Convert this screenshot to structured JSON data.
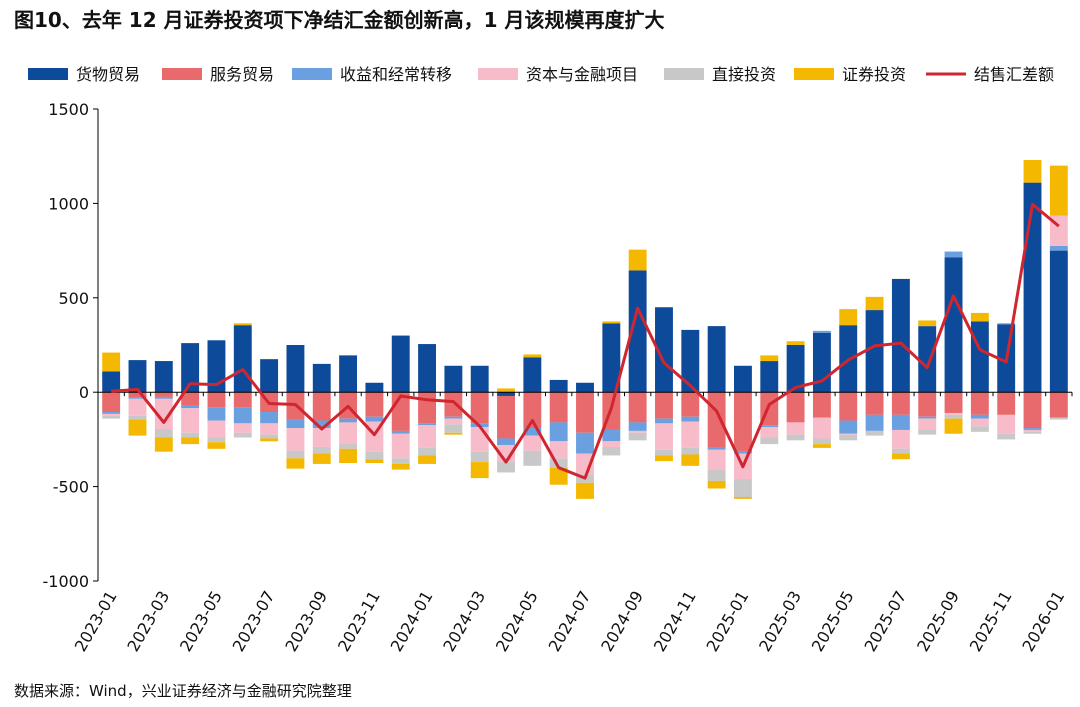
{
  "title": "图10、去年 12 月证券投资项下净结汇金额创新高，1 月该规模再度扩大",
  "source": "数据来源：Wind，兴业证券经济与金融研究院整理",
  "chart_data": {
    "type": "bar",
    "stacked": true,
    "x": [
      "2023-01",
      "2023-02",
      "2023-03",
      "2023-04",
      "2023-05",
      "2023-06",
      "2023-07",
      "2023-08",
      "2023-09",
      "2023-10",
      "2023-11",
      "2023-12",
      "2024-01",
      "2024-02",
      "2024-03",
      "2024-04",
      "2024-05",
      "2024-06",
      "2024-07",
      "2024-08",
      "2024-09",
      "2024-10",
      "2024-11",
      "2024-12",
      "2025-01",
      "2025-02",
      "2025-03",
      "2025-04",
      "2025-05",
      "2025-06",
      "2025-07",
      "2025-08",
      "2025-09",
      "2025-10",
      "2025-11",
      "2025-12",
      "2026-01"
    ],
    "x_tick_labels": [
      "2023-01",
      "2023-03",
      "2023-05",
      "2023-07",
      "2023-09",
      "2023-11",
      "2024-01",
      "2024-03",
      "2024-05",
      "2024-07",
      "2024-09",
      "2024-11",
      "2025-01",
      "2025-03",
      "2025-05",
      "2025-07",
      "2025-09",
      "2025-11",
      "2026-01"
    ],
    "ylim": [
      -1000,
      1500
    ],
    "y_ticks": [
      -1000,
      -500,
      0,
      500,
      1000,
      1500
    ],
    "legend_position": "top",
    "grid": false,
    "series": [
      {
        "name": "货物贸易",
        "color": "#0D4B9A",
        "values": [
          110,
          170,
          165,
          260,
          275,
          355,
          175,
          250,
          150,
          195,
          50,
          300,
          255,
          140,
          140,
          -20,
          185,
          65,
          50,
          365,
          645,
          450,
          330,
          350,
          140,
          165,
          250,
          315,
          355,
          435,
          600,
          350,
          715,
          375,
          360,
          1110,
          750
        ]
      },
      {
        "name": "服务贸易",
        "color": "#E96A6C",
        "values": [
          -105,
          -30,
          -25,
          -70,
          -80,
          -80,
          -105,
          -145,
          -150,
          -140,
          -130,
          -205,
          -165,
          -130,
          -165,
          -225,
          -190,
          -160,
          -215,
          -200,
          -160,
          -140,
          -130,
          -295,
          -315,
          -175,
          -160,
          -135,
          -150,
          -120,
          -120,
          -130,
          -110,
          -120,
          -120,
          -190,
          -135
        ]
      },
      {
        "name": "收益和经常转移",
        "color": "#6A9FE0",
        "values": [
          -10,
          -5,
          -10,
          -15,
          -70,
          -85,
          -60,
          -45,
          -40,
          -20,
          -25,
          -15,
          -10,
          -10,
          -20,
          -35,
          -40,
          -100,
          -110,
          -60,
          -45,
          -25,
          -25,
          -10,
          -10,
          -10,
          0,
          10,
          -70,
          -85,
          -80,
          -10,
          30,
          -20,
          5,
          -10,
          25
        ]
      },
      {
        "name": "资本与金融项目",
        "color": "#F8BBC9",
        "values": [
          -10,
          -90,
          -160,
          -130,
          -90,
          -50,
          -60,
          -120,
          -100,
          -110,
          -160,
          -130,
          -120,
          -30,
          -130,
          -90,
          -80,
          -90,
          -110,
          -30,
          -10,
          -140,
          -140,
          -105,
          -135,
          -55,
          -65,
          -110,
          -5,
          0,
          -100,
          -60,
          -10,
          -40,
          -100,
          -10,
          160
        ]
      },
      {
        "name": "直接投资",
        "color": "#C8C8C8",
        "values": [
          -15,
          -20,
          -45,
          -25,
          -25,
          -25,
          -20,
          -40,
          -35,
          -30,
          -40,
          -30,
          -40,
          -45,
          -55,
          -55,
          -80,
          -50,
          -45,
          -45,
          -40,
          -30,
          -35,
          -60,
          -95,
          -35,
          -30,
          -30,
          -30,
          -25,
          -25,
          -25,
          -20,
          -30,
          -30,
          -10,
          -10
        ]
      },
      {
        "name": "证券投资",
        "color": "#F5B800",
        "values": [
          100,
          -85,
          -75,
          -35,
          -35,
          10,
          -15,
          -55,
          -55,
          -75,
          -20,
          -30,
          -45,
          -10,
          -85,
          20,
          15,
          -90,
          -85,
          10,
          110,
          -30,
          -60,
          -40,
          -10,
          30,
          20,
          -20,
          85,
          70,
          -30,
          30,
          -80,
          45,
          0,
          120,
          265
        ]
      },
      {
        "name": "结售汇差额",
        "color": "#D0262F",
        "type": "line",
        "values": [
          5,
          15,
          -160,
          45,
          40,
          120,
          -60,
          -65,
          -195,
          -75,
          -225,
          -20,
          -40,
          -50,
          -180,
          -370,
          -150,
          -400,
          -455,
          -85,
          445,
          155,
          35,
          -100,
          -395,
          -65,
          25,
          60,
          170,
          245,
          260,
          130,
          510,
          225,
          160,
          995,
          880
        ]
      }
    ]
  }
}
